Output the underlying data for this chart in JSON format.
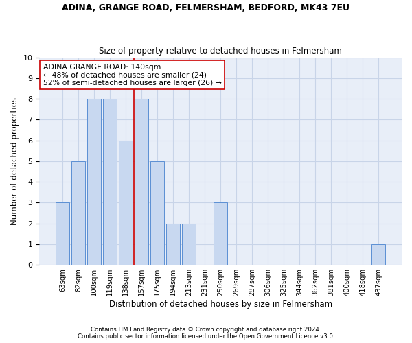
{
  "title1": "ADINA, GRANGE ROAD, FELMERSHAM, BEDFORD, MK43 7EU",
  "title2": "Size of property relative to detached houses in Felmersham",
  "xlabel": "Distribution of detached houses by size in Felmersham",
  "ylabel": "Number of detached properties",
  "categories": [
    "63sqm",
    "82sqm",
    "100sqm",
    "119sqm",
    "138sqm",
    "157sqm",
    "175sqm",
    "194sqm",
    "213sqm",
    "231sqm",
    "250sqm",
    "269sqm",
    "287sqm",
    "306sqm",
    "325sqm",
    "344sqm",
    "362sqm",
    "381sqm",
    "400sqm",
    "418sqm",
    "437sqm"
  ],
  "values": [
    3,
    5,
    8,
    8,
    6,
    8,
    5,
    2,
    2,
    0,
    3,
    0,
    0,
    0,
    0,
    0,
    0,
    0,
    0,
    0,
    1
  ],
  "bar_color": "#c8d8f0",
  "bar_edge_color": "#5b8fd4",
  "grid_color": "#c8d4e8",
  "background_color": "#e8eef8",
  "red_line_x": 4.5,
  "red_line_color": "#cc0000",
  "annotation_text": "ADINA GRANGE ROAD: 140sqm\n← 48% of detached houses are smaller (24)\n52% of semi-detached houses are larger (26) →",
  "annotation_box_color": "#ffffff",
  "annotation_box_edge": "#cc0000",
  "footer1": "Contains HM Land Registry data © Crown copyright and database right 2024.",
  "footer2": "Contains public sector information licensed under the Open Government Licence v3.0.",
  "ylim": [
    0,
    10
  ],
  "yticks": [
    0,
    1,
    2,
    3,
    4,
    5,
    6,
    7,
    8,
    9,
    10
  ]
}
